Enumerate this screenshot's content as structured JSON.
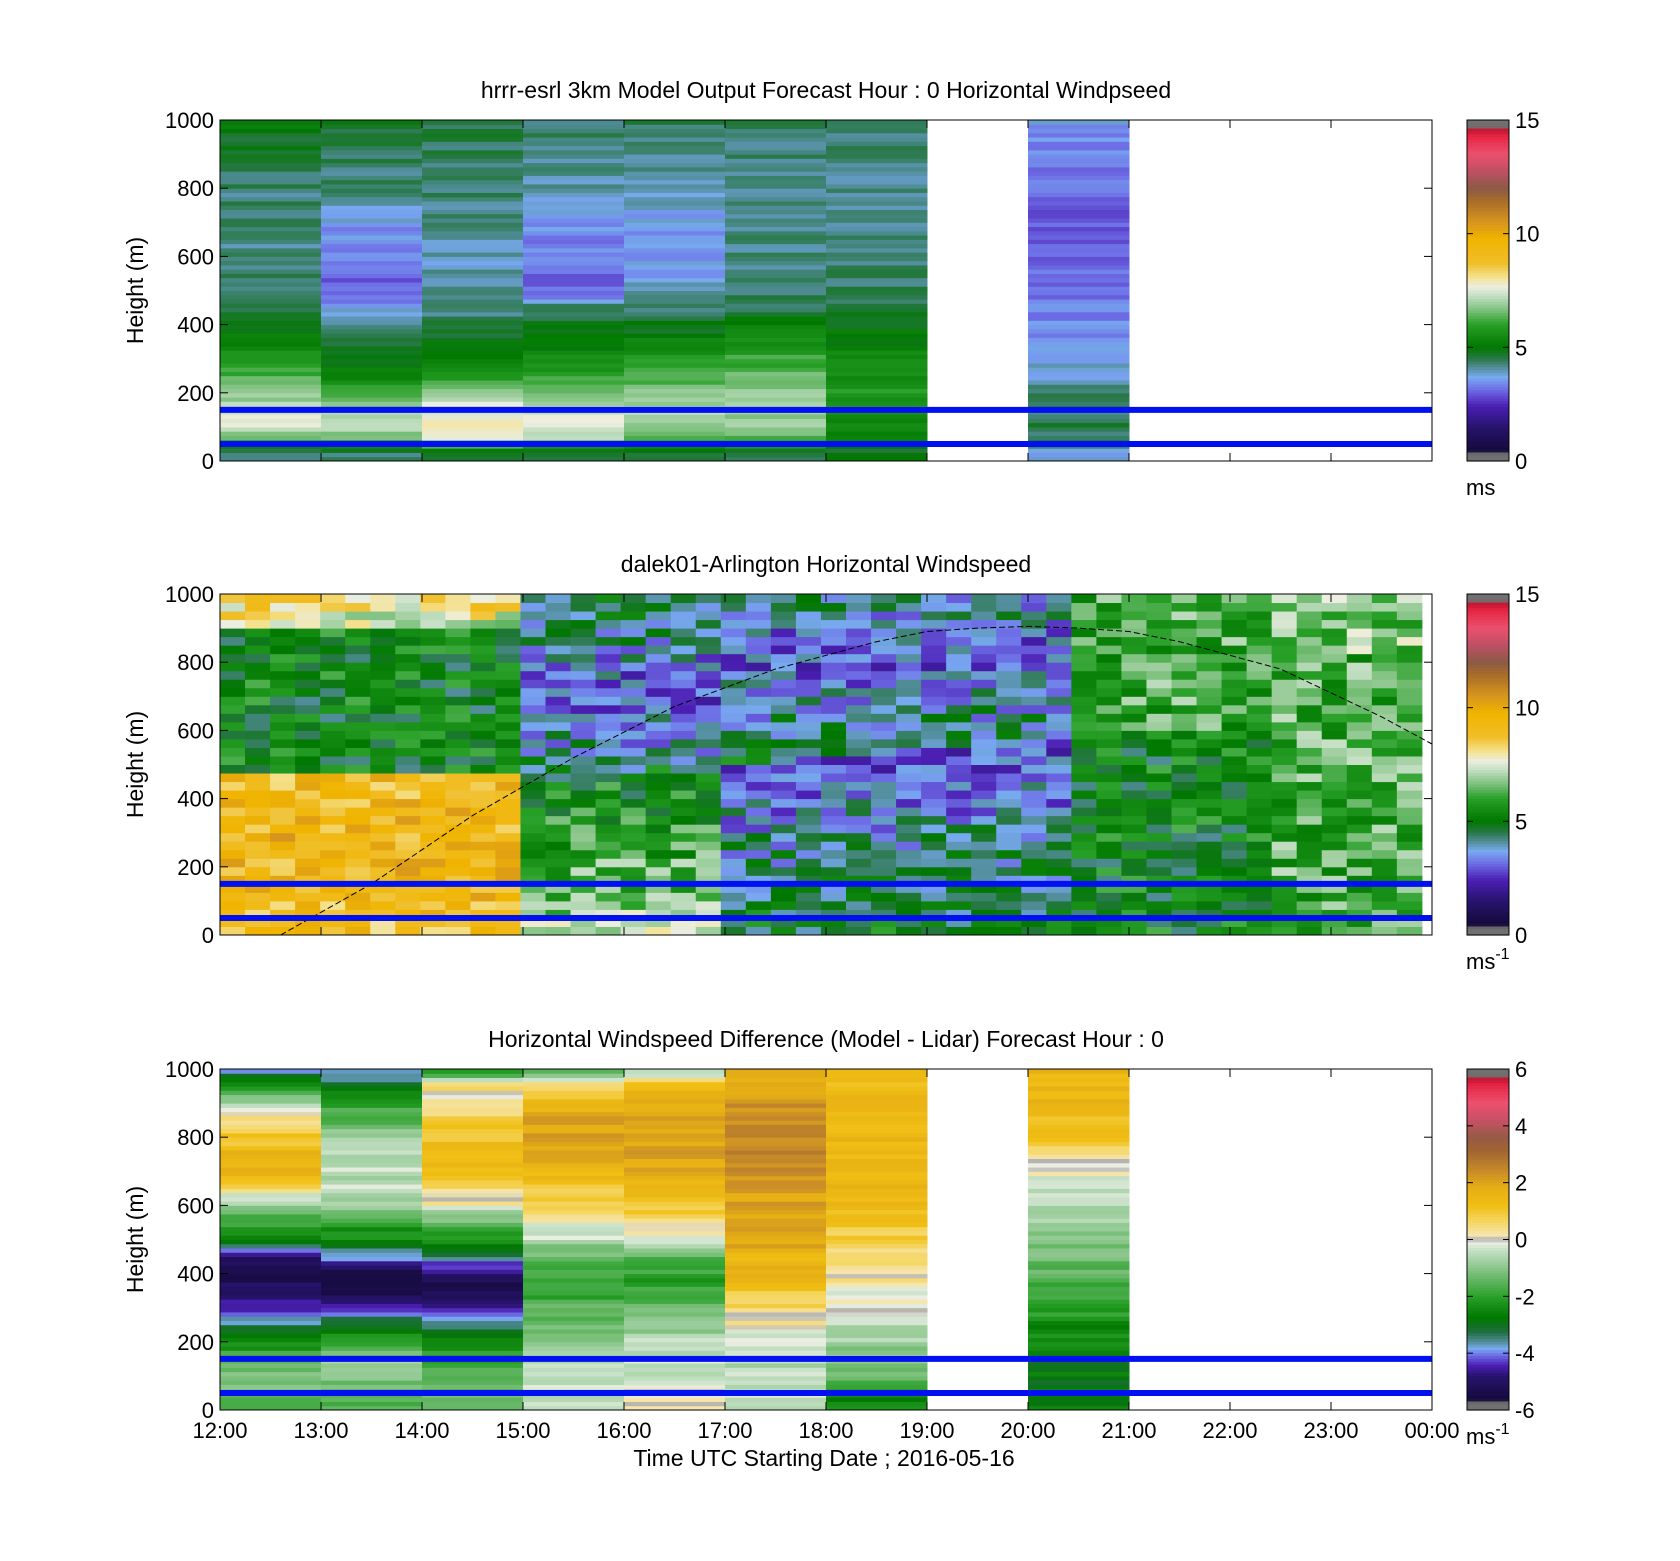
{
  "figure": {
    "xlabel": "Time UTC  Starting Date ; 2016-05-16",
    "x_ticks": [
      "12:00",
      "13:00",
      "14:00",
      "15:00",
      "16:00",
      "17:00",
      "18:00",
      "19:00",
      "20:00",
      "21:00",
      "22:00",
      "23:00",
      "00:00"
    ]
  },
  "chart_data": [
    {
      "type": "heatmap",
      "title": "hrrr-esrl 3km Model Output   Forecast Hour : 0 Horizontal Windpseed",
      "ylabel": "Height (m)",
      "xlim": [
        12,
        24
      ],
      "ylim": [
        0,
        1000
      ],
      "y_ticks": [
        "0",
        "200",
        "400",
        "600",
        "800",
        "1000"
      ],
      "colorbar": {
        "ticks": [
          "0",
          "5",
          "10",
          "15"
        ],
        "range": [
          0,
          15
        ],
        "unit": "ms",
        "unit_sup": ""
      },
      "height_levels_m": [
        25,
        50,
        75,
        100,
        125,
        150,
        175,
        200,
        225,
        250,
        300,
        350,
        400,
        450,
        500,
        600,
        700,
        800,
        900,
        1000
      ],
      "columns": [
        {
          "x0": 12,
          "x1": 13,
          "speed": [
            4.4,
            5.5,
            6.5,
            7.6,
            7.8,
            7.2,
            7.0,
            6.8,
            6.5,
            6.2,
            5.8,
            5.2,
            4.8,
            4.5,
            4.3,
            4.2,
            4.2,
            4.3,
            4.5,
            5.1
          ]
        },
        {
          "x0": 13,
          "x1": 14,
          "speed": [
            4.4,
            5.8,
            6.7,
            7.2,
            7.0,
            6.8,
            6.5,
            6.2,
            5.8,
            5.2,
            4.8,
            4.6,
            4.2,
            3.5,
            3.0,
            3.2,
            3.6,
            4.2,
            4.4,
            4.8
          ]
        },
        {
          "x0": 14,
          "x1": 15,
          "speed": [
            4.6,
            6.5,
            7.7,
            8.0,
            7.6,
            7.5,
            7.3,
            6.8,
            6.3,
            5.7,
            5.2,
            4.8,
            4.5,
            4.2,
            4.0,
            3.9,
            4.1,
            4.3,
            4.4,
            4.6
          ]
        },
        {
          "x0": 15,
          "x1": 16,
          "speed": [
            4.5,
            6.2,
            7.2,
            7.4,
            7.7,
            7.2,
            6.8,
            6.6,
            6.3,
            5.9,
            5.5,
            5.0,
            4.6,
            4.3,
            3.0,
            3.2,
            3.5,
            4.0,
            4.2,
            4.4
          ]
        },
        {
          "x0": 16,
          "x1": 17,
          "speed": [
            4.5,
            5.8,
            6.4,
            6.8,
            7.0,
            7.0,
            6.9,
            6.7,
            6.5,
            6.2,
            5.7,
            5.2,
            4.8,
            4.3,
            3.8,
            3.5,
            3.6,
            4.0,
            4.2,
            4.5
          ]
        },
        {
          "x0": 17,
          "x1": 18,
          "speed": [
            4.5,
            5.8,
            6.5,
            6.8,
            6.9,
            6.9,
            6.8,
            6.7,
            6.6,
            6.4,
            6.1,
            5.6,
            5.0,
            4.5,
            4.3,
            4.2,
            4.2,
            4.2,
            4.3,
            4.4
          ]
        },
        {
          "x0": 18,
          "x1": 19,
          "speed": [
            4.8,
            5.0,
            5.1,
            5.2,
            5.4,
            5.6,
            5.8,
            5.8,
            5.7,
            5.5,
            5.3,
            5.1,
            4.9,
            4.6,
            4.4,
            4.3,
            4.2,
            4.2,
            4.2,
            4.3
          ]
        },
        {
          "x0": 20,
          "x1": 21,
          "speed": [
            3.6,
            4.4,
            4.5,
            4.5,
            4.5,
            4.3,
            4.2,
            4.2,
            4.0,
            3.8,
            3.7,
            3.5,
            3.4,
            3.3,
            3.2,
            3.1,
            3.0,
            3.1,
            3.3,
            3.6
          ]
        }
      ],
      "hlines_m": [
        50,
        150
      ],
      "annotations": []
    },
    {
      "type": "heatmap",
      "title": "dalek01-Arlington  Horizontal Windspeed",
      "ylabel": "Height (m)",
      "xlim": [
        12,
        24
      ],
      "ylim": [
        0,
        1000
      ],
      "y_ticks": [
        "0",
        "200",
        "400",
        "600",
        "800",
        "1000"
      ],
      "colorbar": {
        "ticks": [
          "0",
          "5",
          "10",
          "15"
        ],
        "range": [
          0,
          15
        ],
        "unit": "ms",
        "unit_sup": "-1"
      },
      "bin_height_m": 25,
      "x_start": 12,
      "x_end": 23.9,
      "n_profiles": 48,
      "regimes": [
        {
          "from": 12,
          "to": 15,
          "low_jet_top_m": 470,
          "low_speed": 9.5,
          "upper_speed": 5.2,
          "top_speed": 8.5
        },
        {
          "from": 15,
          "to": 17,
          "mid_low_speed": 3.0,
          "below_speed": 7.0,
          "wind_minimum_m": 700
        },
        {
          "from": 17,
          "to": 20.5,
          "mid_low_speed": 3.0,
          "below_speed": 5.0,
          "wind_minimum_m": 800
        },
        {
          "from": 20.5,
          "to": 24,
          "speed": 5.5,
          "above_trend": 6.8
        }
      ],
      "boundary_layer_curve": {
        "x": [
          12.6,
          13.5,
          14.5,
          15.5,
          16.5,
          17.5,
          18.5,
          19.0,
          19.5,
          20.0,
          20.5,
          21.0,
          21.5,
          22.5,
          23.5,
          24.0
        ],
        "y_m": [
          0,
          150,
          350,
          520,
          670,
          780,
          860,
          890,
          900,
          905,
          900,
          890,
          860,
          780,
          640,
          560
        ]
      },
      "hlines_m": [
        50,
        150
      ],
      "annotations": []
    },
    {
      "type": "heatmap",
      "title": "Horizontal Windspeed Difference (Model - Lidar) Forecast Hour : 0",
      "ylabel": "Height (m)",
      "xlim": [
        12,
        24
      ],
      "ylim": [
        0,
        1000
      ],
      "y_ticks": [
        "0",
        "200",
        "400",
        "600",
        "800",
        "1000"
      ],
      "colorbar": {
        "ticks": [
          "-6",
          "-4",
          "-2",
          "0",
          "2",
          "4",
          "6"
        ],
        "range": [
          -6,
          6
        ],
        "unit": "ms",
        "unit_sup": "-1"
      },
      "height_levels_m": [
        50,
        100,
        150,
        200,
        250,
        300,
        350,
        400,
        450,
        500,
        550,
        600,
        650,
        700,
        750,
        800,
        850,
        900,
        950,
        1000
      ],
      "columns": [
        {
          "x0": 12,
          "x1": 13,
          "diff": [
            -1.5,
            -1.0,
            -1.5,
            -2.5,
            -3.5,
            -4.5,
            -5.0,
            -5.5,
            -5.0,
            -2.5,
            -2.0,
            -1.0,
            0.5,
            1.5,
            1.5,
            1.0,
            0.5,
            -1.0,
            -2.0,
            -4.0
          ]
        },
        {
          "x0": 13,
          "x1": 14,
          "diff": [
            -1.5,
            -1.0,
            -1.0,
            -2.0,
            -3.0,
            -4.5,
            -5.5,
            -5.5,
            -4.0,
            -2.5,
            -2.0,
            -1.0,
            -0.5,
            -0.5,
            -0.5,
            -1.0,
            -1.5,
            -2.0,
            -3.0,
            -4.0
          ]
        },
        {
          "x0": 14,
          "x1": 15,
          "diff": [
            -1.5,
            -1.5,
            -2.0,
            -2.5,
            -3.5,
            -4.5,
            -5.5,
            -5.0,
            -3.5,
            -2.5,
            -1.5,
            0.0,
            0.5,
            1.0,
            1.5,
            1.0,
            1.0,
            0.0,
            0.5,
            -2.5
          ]
        },
        {
          "x0": 15,
          "x1": 16,
          "diff": [
            -0.5,
            -0.5,
            -0.5,
            -1.0,
            -1.5,
            -1.5,
            -2.0,
            -2.0,
            -1.5,
            -0.5,
            0.0,
            0.5,
            1.0,
            1.5,
            2.0,
            2.0,
            2.0,
            1.5,
            0.5,
            -1.5
          ]
        },
        {
          "x0": 16,
          "x1": 17,
          "diff": [
            0.0,
            -0.5,
            -0.5,
            -0.5,
            -1.0,
            -1.5,
            -2.0,
            -2.0,
            -1.5,
            -0.5,
            0.5,
            1.0,
            1.5,
            1.8,
            2.0,
            2.0,
            2.0,
            1.8,
            1.5,
            -1.0
          ]
        },
        {
          "x0": 17,
          "x1": 18,
          "diff": [
            -0.5,
            -0.5,
            -0.5,
            -0.5,
            0.0,
            0.5,
            1.0,
            1.5,
            1.5,
            2.0,
            2.0,
            2.0,
            2.0,
            2.5,
            2.5,
            2.5,
            2.5,
            2.3,
            2.0,
            1.5
          ]
        },
        {
          "x0": 18,
          "x1": 19,
          "diff": [
            -2.5,
            -1.5,
            -1.0,
            -0.8,
            -0.5,
            -0.3,
            0.0,
            0.3,
            0.5,
            0.8,
            1.0,
            1.5,
            1.5,
            1.5,
            1.5,
            1.5,
            1.5,
            1.3,
            1.3,
            1.2
          ]
        },
        {
          "x0": 20,
          "x1": 21,
          "diff": [
            -2.8,
            -2.8,
            -2.8,
            -2.6,
            -2.4,
            -2.0,
            -1.8,
            -1.5,
            -1.3,
            -1.0,
            -0.8,
            -0.5,
            -0.3,
            0.0,
            0.5,
            1.0,
            1.2,
            1.5,
            1.5,
            1.5
          ]
        }
      ],
      "hlines_m": [
        50,
        150
      ],
      "annotations": []
    }
  ]
}
